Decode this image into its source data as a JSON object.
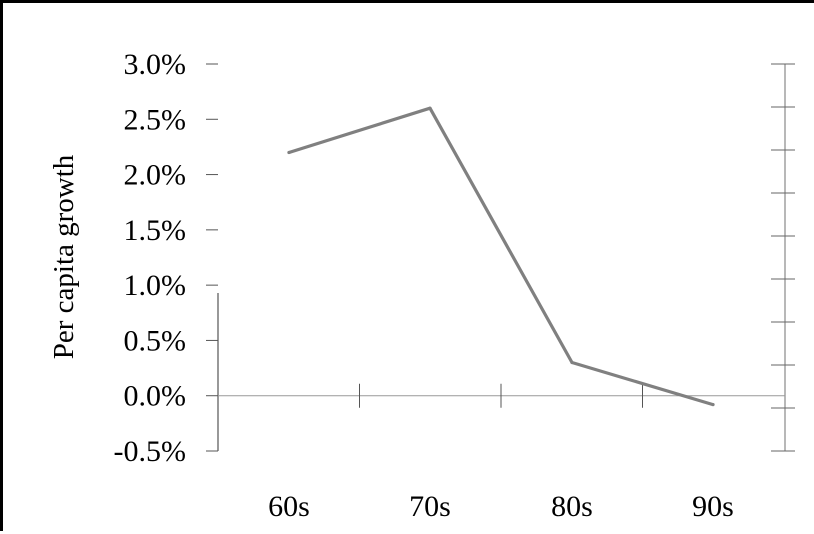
{
  "chart_data": {
    "type": "line",
    "categories": [
      "60s",
      "70s",
      "80s",
      "90s"
    ],
    "series": [
      {
        "values": [
          2.2,
          2.6,
          0.3,
          -0.08
        ],
        "color": "#808080"
      }
    ],
    "ylabel": "Per capita growth",
    "xlabel": "",
    "title": "",
    "ylim": [
      -0.5,
      3.0
    ],
    "y_ticks": [
      "3.0%",
      "2.5%",
      "2.0%",
      "1.5%",
      "1.0%",
      "0.5%",
      "0.0%",
      "-0.5%"
    ],
    "y_tick_values": [
      3.0,
      2.5,
      2.0,
      1.5,
      1.0,
      0.5,
      0.0,
      -0.5
    ],
    "grid": false,
    "legend": "none",
    "secondary_y_axis": "unlabeled ticks on right"
  }
}
